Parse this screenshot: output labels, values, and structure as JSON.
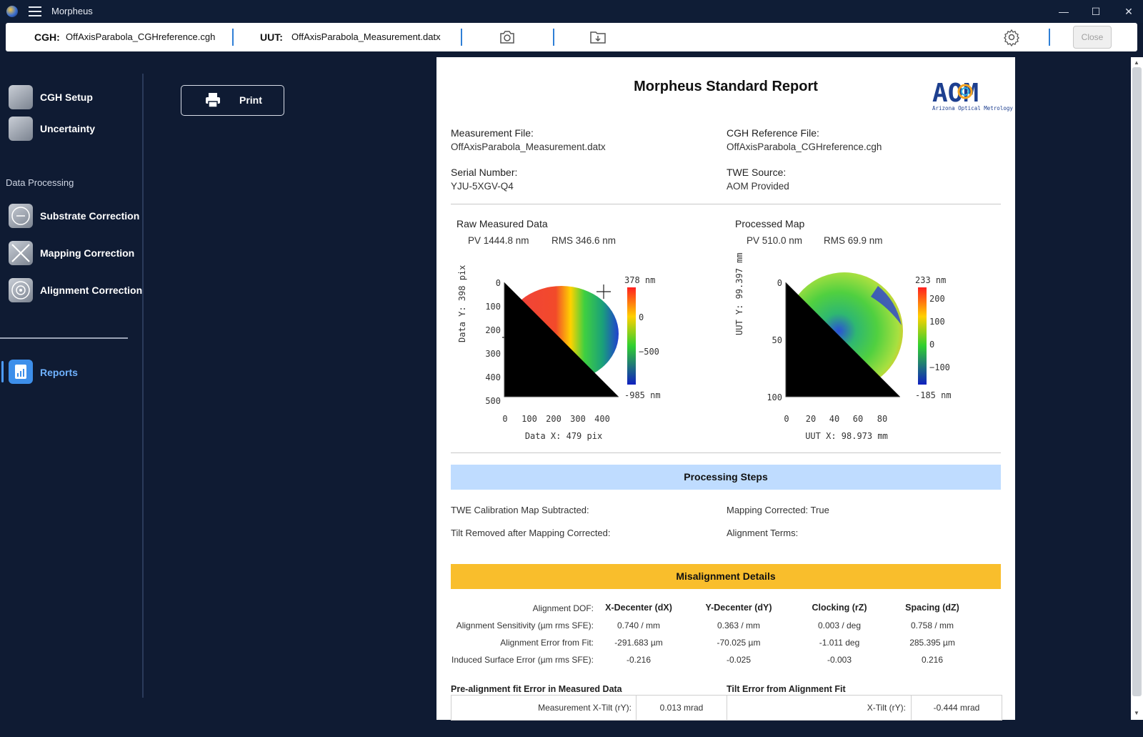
{
  "app": {
    "title": "Morpheus"
  },
  "window": {
    "minimize": "—",
    "maximize": "☐",
    "close": "✕"
  },
  "filebar": {
    "cgh_label": "CGH:",
    "cgh_value": "OffAxisParabola_CGHreference.cgh",
    "uut_label": "UUT:",
    "uut_value": "OffAxisParabola_Measurement.datx",
    "close_button": "Close"
  },
  "sidebar": {
    "items": [
      {
        "label": "CGH Setup"
      },
      {
        "label": "Uncertainty"
      }
    ],
    "section": "Data Processing",
    "processing": [
      {
        "label": "Substrate Correction"
      },
      {
        "label": "Mapping Correction"
      },
      {
        "label": "Alignment Correction"
      }
    ],
    "reports": "Reports"
  },
  "print_button": "Print",
  "report": {
    "title": "Morpheus Standard Report",
    "logo_text": "AOM",
    "logo_sub": "Arizona Optical Metrology",
    "measurement_file_label": "Measurement File:",
    "measurement_file": "OffAxisParabola_Measurement.datx",
    "cgh_file_label": "CGH Reference File:",
    "cgh_file": "OffAxisParabola_CGHreference.cgh",
    "serial_label": "Serial Number:",
    "serial": "YJU-5XGV-Q4",
    "twe_label": "TWE Source:",
    "twe": "AOM Provided",
    "raw": {
      "title": "Raw Measured Data",
      "pv": "PV 1444.8 nm",
      "rms": "RMS 346.6 nm",
      "xlabel": "Data X: 479 pix",
      "ylabel": "Data Y: 398 pix",
      "xticks": [
        "0",
        "100",
        "200",
        "300",
        "400"
      ],
      "yticks": [
        "0",
        "100",
        "200",
        "300",
        "400",
        "500"
      ],
      "cb_top": "378 nm",
      "cb_bottom": "-985 nm",
      "cb_ticks": [
        "0",
        "−500"
      ]
    },
    "processed": {
      "title": "Processed Map",
      "pv": "PV 510.0 nm",
      "rms": "RMS 69.9 nm",
      "xlabel": "UUT X: 98.973 mm",
      "ylabel": "UUT Y: 99.397 mm",
      "xticks": [
        "0",
        "20",
        "40",
        "60",
        "80"
      ],
      "yticks": [
        "0",
        "50",
        "100"
      ],
      "cb_top": "233 nm",
      "cb_bottom": "-185 nm",
      "cb_ticks": [
        "200",
        "100",
        "0",
        "−100"
      ]
    },
    "processing_title": "Processing Steps",
    "steps": {
      "twe": "TWE Calibration Map Subtracted:",
      "mapping": "Mapping Corrected: True",
      "tilt": "Tilt Removed after Mapping Corrected:",
      "alignment": "Alignment Terms:"
    },
    "misalignment_title": "Misalignment Details",
    "mis_table": {
      "dof_label": "Alignment DOF:",
      "headers": [
        "X-Decenter (dX)",
        "Y-Decenter (dY)",
        "Clocking (rZ)",
        "Spacing (dZ)"
      ],
      "rows": [
        {
          "label": "Alignment Sensitivity (µm rms SFE):",
          "values": [
            "0.740 / mm",
            "0.363 / mm",
            "0.003 / deg",
            "0.758 / mm"
          ]
        },
        {
          "label": "Alignment Error from Fit:",
          "values": [
            "-291.683 µm",
            "-70.025 µm",
            "-1.011 deg",
            "285.395 µm"
          ]
        },
        {
          "label": "Induced Surface Error (µm rms SFE):",
          "values": [
            "-0.216",
            "-0.025",
            "-0.003",
            "0.216"
          ]
        }
      ]
    },
    "prealign_title": "Pre-alignment fit Error in Measured Data",
    "tilt_error_title": "Tilt Error from Alignment Fit",
    "meas_xtilt_label": "Measurement X-Tilt (rY):",
    "meas_xtilt_value": "0.013 mrad",
    "xtilt_label": "X-Tilt (rY):",
    "xtilt_value": "-0.444 mrad"
  },
  "colors": {
    "accent": "#2f7fd6",
    "processing_band": "#bfdcff",
    "misalignment_band": "#f9be2c",
    "background": "#0f1b33"
  }
}
